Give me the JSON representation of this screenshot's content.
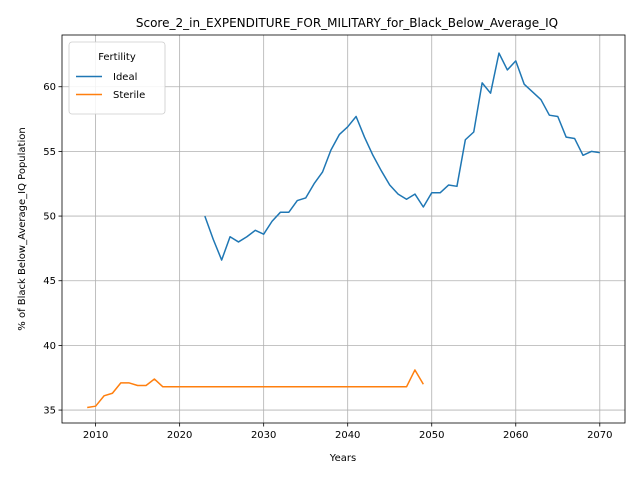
{
  "chart_data": {
    "type": "line",
    "title": "Score_2_in_EXPENDITURE_FOR_MILITARY_for_Black_Below_Average_IQ",
    "xlabel": "Years",
    "ylabel": "% of Black Below_Average_IQ Population",
    "xlim": [
      2006,
      2073
    ],
    "ylim": [
      34,
      64
    ],
    "x_ticks": [
      2010,
      2020,
      2030,
      2040,
      2050,
      2060,
      2070
    ],
    "y_ticks": [
      35,
      40,
      45,
      50,
      55,
      60
    ],
    "grid": true,
    "legend": {
      "title": "Fertility",
      "placement": "top-left"
    },
    "series": [
      {
        "name": "Ideal",
        "color": "#1f77b4",
        "x": [
          2023,
          2024,
          2025,
          2026,
          2027,
          2028,
          2029,
          2030,
          2031,
          2032,
          2033,
          2034,
          2035,
          2036,
          2037,
          2038,
          2039,
          2040,
          2041,
          2042,
          2043,
          2044,
          2045,
          2046,
          2047,
          2048,
          2049,
          2050,
          2051,
          2052,
          2053,
          2054,
          2055,
          2056,
          2057,
          2058,
          2059,
          2060,
          2061,
          2062,
          2063,
          2064,
          2065,
          2066,
          2067,
          2068,
          2069,
          2070
        ],
        "values": [
          50.0,
          48.2,
          46.6,
          48.4,
          48.0,
          48.4,
          48.9,
          48.6,
          49.6,
          50.3,
          50.3,
          51.2,
          51.4,
          52.5,
          53.4,
          55.1,
          56.3,
          56.9,
          57.7,
          56.1,
          54.7,
          53.5,
          52.4,
          51.7,
          51.3,
          51.7,
          50.7,
          51.8,
          51.8,
          52.4,
          52.3,
          55.9,
          56.5,
          60.3,
          59.5,
          62.6,
          61.3,
          62.0,
          60.2,
          59.6,
          59.0,
          57.8,
          57.7,
          56.1,
          56.0,
          54.7,
          55.0,
          54.9
        ]
      },
      {
        "name": "Sterile",
        "color": "#ff7f0e",
        "x": [
          2009,
          2010,
          2011,
          2012,
          2013,
          2014,
          2015,
          2016,
          2017,
          2018,
          2019,
          2020,
          2021,
          2022,
          2023,
          2024,
          2025,
          2026,
          2027,
          2028,
          2029,
          2030,
          2031,
          2032,
          2033,
          2034,
          2035,
          2036,
          2037,
          2038,
          2039,
          2040,
          2041,
          2042,
          2043,
          2044,
          2045,
          2046,
          2047,
          2048,
          2049
        ],
        "values": [
          35.2,
          35.3,
          36.1,
          36.3,
          37.1,
          37.1,
          36.9,
          36.9,
          37.4,
          36.8,
          36.8,
          36.8,
          36.8,
          36.8,
          36.8,
          36.8,
          36.8,
          36.8,
          36.8,
          36.8,
          36.8,
          36.8,
          36.8,
          36.8,
          36.8,
          36.8,
          36.8,
          36.8,
          36.8,
          36.8,
          36.8,
          36.8,
          36.8,
          36.8,
          36.8,
          36.8,
          36.8,
          36.8,
          36.8,
          38.1,
          37.0
        ]
      }
    ]
  }
}
